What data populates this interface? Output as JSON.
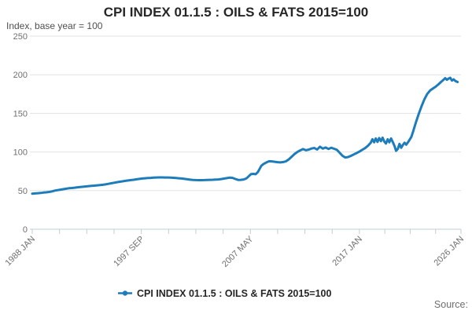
{
  "chart": {
    "title": "CPI INDEX 01.1.5 : OILS & FATS 2015=100",
    "subtitle": "Index, base year = 100",
    "legend": {
      "label": "CPI INDEX 01.1.5 : OILS & FATS 2015=100"
    },
    "source": {
      "label": "Source:"
    },
    "colors": {
      "line": "#1d7cba",
      "grid": "#e2e2e2",
      "axis": "#c2ccd9",
      "muted_text": "#6f6f6f",
      "title_text": "#262626"
    }
  },
  "chart_data": {
    "type": "line",
    "title": "CPI INDEX 01.1.5 : OILS & FATS 2015=100",
    "subtitle": "Index, base year = 100",
    "ylabel": "Index, base year = 100",
    "ylim": [
      0,
      250
    ],
    "yticks": [
      0,
      50,
      100,
      150,
      200,
      250
    ],
    "xlim_years": [
      1988.0,
      2026.0
    ],
    "xtick_labels": [
      "1988 JAN",
      "1997 SEP",
      "2007 MAY",
      "2017 JAN",
      "2026 JAN"
    ],
    "xtick_years": [
      1988.0,
      1997.6667,
      2007.3333,
      2017.0,
      2026.0
    ],
    "minor_ticks_between": 3,
    "grid": "horizontal",
    "legend_position": "bottom",
    "series": [
      {
        "name": "CPI INDEX 01.1.5 : OILS & FATS 2015=100",
        "points": [
          [
            1988.0,
            46
          ],
          [
            1988.25,
            46.3
          ],
          [
            1988.5,
            46.6
          ],
          [
            1988.75,
            47
          ],
          [
            1989.0,
            47.5
          ],
          [
            1989.25,
            47.8
          ],
          [
            1989.5,
            48.3
          ],
          [
            1989.75,
            49
          ],
          [
            1990.0,
            50
          ],
          [
            1990.25,
            50.6
          ],
          [
            1990.5,
            51.2
          ],
          [
            1990.75,
            51.8
          ],
          [
            1991.0,
            52.4
          ],
          [
            1991.25,
            53
          ],
          [
            1991.5,
            53.4
          ],
          [
            1991.75,
            53.8
          ],
          [
            1992.0,
            54.3
          ],
          [
            1992.25,
            54.7
          ],
          [
            1992.5,
            55
          ],
          [
            1992.75,
            55.4
          ],
          [
            1993.0,
            55.8
          ],
          [
            1993.25,
            56.1
          ],
          [
            1993.5,
            56.4
          ],
          [
            1993.75,
            56.8
          ],
          [
            1994.0,
            57.1
          ],
          [
            1994.25,
            57.5
          ],
          [
            1994.5,
            58
          ],
          [
            1994.75,
            58.7
          ],
          [
            1995.0,
            59.5
          ],
          [
            1995.25,
            60.2
          ],
          [
            1995.5,
            60.9
          ],
          [
            1995.75,
            61.5
          ],
          [
            1996.0,
            62
          ],
          [
            1996.25,
            62.6
          ],
          [
            1996.5,
            63.1
          ],
          [
            1996.75,
            63.6
          ],
          [
            1997.0,
            64
          ],
          [
            1997.25,
            64.6
          ],
          [
            1997.5,
            65.1
          ],
          [
            1997.75,
            65.6
          ],
          [
            1998.0,
            66
          ],
          [
            1998.25,
            66.3
          ],
          [
            1998.5,
            66.5
          ],
          [
            1998.75,
            66.8
          ],
          [
            1999.0,
            67
          ],
          [
            1999.25,
            67.1
          ],
          [
            1999.5,
            67.1
          ],
          [
            1999.75,
            67
          ],
          [
            2000.0,
            67
          ],
          [
            2000.25,
            66.8
          ],
          [
            2000.5,
            66.6
          ],
          [
            2000.75,
            66.3
          ],
          [
            2001.0,
            66
          ],
          [
            2001.25,
            65.6
          ],
          [
            2001.5,
            65.1
          ],
          [
            2001.75,
            64.6
          ],
          [
            2002.0,
            64.1
          ],
          [
            2002.25,
            63.8
          ],
          [
            2002.5,
            63.6
          ],
          [
            2002.75,
            63.5
          ],
          [
            2003.0,
            63.5
          ],
          [
            2003.25,
            63.6
          ],
          [
            2003.5,
            63.8
          ],
          [
            2003.75,
            63.9
          ],
          [
            2004.0,
            64
          ],
          [
            2004.25,
            64.2
          ],
          [
            2004.5,
            64.4
          ],
          [
            2004.75,
            64.9
          ],
          [
            2005.0,
            65.5
          ],
          [
            2005.25,
            66.2
          ],
          [
            2005.5,
            66.8
          ],
          [
            2005.75,
            66.5
          ],
          [
            2006.0,
            65
          ],
          [
            2006.25,
            63.8
          ],
          [
            2006.5,
            63.9
          ],
          [
            2006.75,
            64.4
          ],
          [
            2007.0,
            66
          ],
          [
            2007.2,
            68.8
          ],
          [
            2007.4,
            71.3
          ],
          [
            2007.6,
            71.6
          ],
          [
            2007.8,
            71.2
          ],
          [
            2008.0,
            74
          ],
          [
            2008.15,
            78
          ],
          [
            2008.3,
            82
          ],
          [
            2008.5,
            84.5
          ],
          [
            2008.75,
            86.5
          ],
          [
            2009.0,
            88
          ],
          [
            2009.25,
            87.8
          ],
          [
            2009.5,
            87.3
          ],
          [
            2009.75,
            86.8
          ],
          [
            2010.0,
            86.5
          ],
          [
            2010.25,
            87
          ],
          [
            2010.5,
            88
          ],
          [
            2010.75,
            90.5
          ],
          [
            2011.0,
            94
          ],
          [
            2011.25,
            97.5
          ],
          [
            2011.5,
            100
          ],
          [
            2011.75,
            102
          ],
          [
            2012.0,
            103.8
          ],
          [
            2012.25,
            102.2
          ],
          [
            2012.5,
            103
          ],
          [
            2012.75,
            104.5
          ],
          [
            2013.0,
            105.2
          ],
          [
            2013.25,
            103.2
          ],
          [
            2013.5,
            106.8
          ],
          [
            2013.75,
            104.4
          ],
          [
            2014.0,
            105.8
          ],
          [
            2014.25,
            104
          ],
          [
            2014.5,
            105.5
          ],
          [
            2014.75,
            104.2
          ],
          [
            2015.0,
            102.8
          ],
          [
            2015.25,
            99
          ],
          [
            2015.5,
            95
          ],
          [
            2015.75,
            92.8
          ],
          [
            2016.0,
            93.5
          ],
          [
            2016.25,
            95
          ],
          [
            2016.5,
            96.8
          ],
          [
            2016.75,
            98.6
          ],
          [
            2017.0,
            100.5
          ],
          [
            2017.25,
            102.8
          ],
          [
            2017.5,
            105
          ],
          [
            2017.75,
            108
          ],
          [
            2018.0,
            112
          ],
          [
            2018.15,
            116.5
          ],
          [
            2018.3,
            112.5
          ],
          [
            2018.45,
            117.5
          ],
          [
            2018.6,
            113
          ],
          [
            2018.75,
            118
          ],
          [
            2018.9,
            114
          ],
          [
            2019.05,
            118.5
          ],
          [
            2019.2,
            113.5
          ],
          [
            2019.35,
            111
          ],
          [
            2019.5,
            116.5
          ],
          [
            2019.65,
            112.5
          ],
          [
            2019.8,
            117.5
          ],
          [
            2019.95,
            113
          ],
          [
            2020.1,
            108
          ],
          [
            2020.25,
            101.5
          ],
          [
            2020.4,
            104
          ],
          [
            2020.55,
            110.5
          ],
          [
            2020.7,
            105.5
          ],
          [
            2020.85,
            109
          ],
          [
            2021.0,
            112
          ],
          [
            2021.15,
            109.5
          ],
          [
            2021.3,
            112.5
          ],
          [
            2021.45,
            116
          ],
          [
            2021.6,
            119.5
          ],
          [
            2021.75,
            126
          ],
          [
            2022.0,
            138
          ],
          [
            2022.25,
            149
          ],
          [
            2022.5,
            159
          ],
          [
            2022.75,
            168
          ],
          [
            2023.0,
            175
          ],
          [
            2023.25,
            179.5
          ],
          [
            2023.5,
            182
          ],
          [
            2023.75,
            184.5
          ],
          [
            2024.0,
            187.5
          ],
          [
            2024.25,
            191
          ],
          [
            2024.45,
            193.5
          ],
          [
            2024.6,
            195.5
          ],
          [
            2024.75,
            193.5
          ],
          [
            2024.9,
            195
          ],
          [
            2025.05,
            196
          ],
          [
            2025.2,
            192.5
          ],
          [
            2025.35,
            194
          ],
          [
            2025.5,
            192
          ],
          [
            2025.7,
            190.5
          ]
        ]
      }
    ]
  }
}
